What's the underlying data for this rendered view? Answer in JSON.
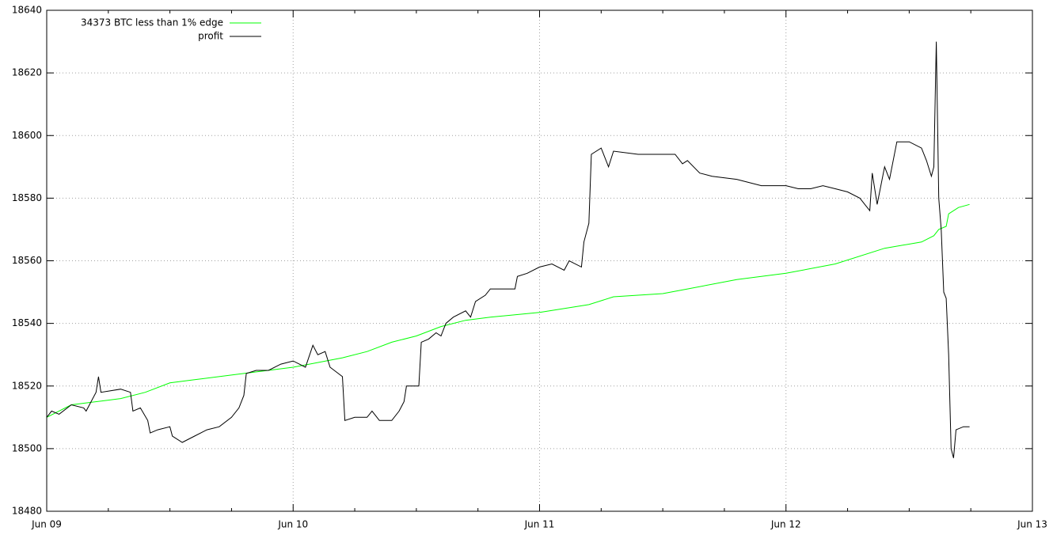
{
  "chart_data": {
    "type": "line",
    "x": [
      0,
      0.1,
      0.3,
      0.4,
      0.5,
      0.6,
      0.8,
      1.0,
      1.2,
      1.3,
      1.4,
      1.5,
      1.6,
      1.7,
      1.8,
      2.0,
      2.2,
      2.3,
      2.5,
      2.6,
      2.8,
      3.0,
      3.2,
      3.4,
      3.55,
      3.6,
      3.62,
      3.65,
      3.66,
      3.7,
      3.745
    ],
    "series": [
      {
        "name": "34373 BTC less than 1% edge",
        "color": "#00ff00",
        "values": [
          18510,
          18514,
          18516,
          18518,
          18521,
          18522,
          18524,
          18526,
          18529,
          18531,
          18534,
          18536,
          18539,
          18541,
          18542,
          18543.5,
          18546,
          18548.5,
          18549.5,
          18551,
          18554,
          18556,
          18559,
          18564,
          18566,
          18568,
          18570,
          18571,
          18575,
          18577,
          18578
        ]
      },
      {
        "name": "profit",
        "color": "#000000",
        "x": [
          0,
          0.02,
          0.05,
          0.1,
          0.15,
          0.16,
          0.2,
          0.21,
          0.22,
          0.3,
          0.34,
          0.35,
          0.38,
          0.41,
          0.42,
          0.45,
          0.5,
          0.51,
          0.55,
          0.6,
          0.65,
          0.7,
          0.75,
          0.78,
          0.8,
          0.81,
          0.85,
          0.9,
          0.95,
          1.0,
          1.05,
          1.08,
          1.1,
          1.13,
          1.15,
          1.2,
          1.21,
          1.25,
          1.3,
          1.32,
          1.34,
          1.35,
          1.4,
          1.43,
          1.45,
          1.46,
          1.51,
          1.52,
          1.55,
          1.58,
          1.6,
          1.62,
          1.65,
          1.7,
          1.72,
          1.74,
          1.78,
          1.8,
          1.9,
          1.91,
          1.95,
          2.0,
          2.05,
          2.1,
          2.12,
          2.17,
          2.18,
          2.2,
          2.21,
          2.25,
          2.28,
          2.3,
          2.4,
          2.55,
          2.58,
          2.6,
          2.65,
          2.7,
          2.8,
          2.9,
          3.0,
          3.05,
          3.1,
          3.15,
          3.2,
          3.25,
          3.3,
          3.32,
          3.34,
          3.35,
          3.37,
          3.4,
          3.42,
          3.45,
          3.5,
          3.55,
          3.57,
          3.59,
          3.6,
          3.61,
          3.62,
          3.63,
          3.64,
          3.65,
          3.66,
          3.67,
          3.68,
          3.69,
          3.72,
          3.745
        ],
        "values": [
          18510,
          18512,
          18511,
          18514,
          18513,
          18512,
          18518,
          18523,
          18518,
          18519,
          18518,
          18512,
          18513,
          18509,
          18505,
          18506,
          18507,
          18504,
          18502,
          18504,
          18506,
          18507,
          18510,
          18513,
          18517,
          18524,
          18525,
          18525,
          18527,
          18528,
          18526,
          18533,
          18530,
          18531,
          18526,
          18523,
          18509,
          18510,
          18510,
          18512,
          18510,
          18509,
          18509,
          18512,
          18515,
          18520,
          18520,
          18534,
          18535,
          18537,
          18536,
          18540,
          18542,
          18544,
          18542,
          18547,
          18549,
          18551,
          18551,
          18555,
          18556,
          18558,
          18559,
          18557,
          18560,
          18558,
          18566,
          18572,
          18594,
          18596,
          18590,
          18595,
          18594,
          18594,
          18591,
          18592,
          18588,
          18587,
          18586,
          18584,
          18584,
          18583,
          18583,
          18584,
          18583,
          18582,
          18580,
          18578,
          18576,
          18588,
          18578,
          18590,
          18586,
          18598,
          18598,
          18596,
          18592,
          18587,
          18590,
          18630,
          18580,
          18570,
          18550,
          18548,
          18530,
          18500,
          18497,
          18506,
          18507,
          18507
        ]
      }
    ],
    "xlim": [
      0,
      4
    ],
    "xticks": [
      {
        "value": 0,
        "label": "Jun 09"
      },
      {
        "value": 1,
        "label": "Jun 10"
      },
      {
        "value": 2,
        "label": "Jun 11"
      },
      {
        "value": 3,
        "label": "Jun 12"
      },
      {
        "value": 4,
        "label": "Jun 13"
      }
    ],
    "ylim": [
      18480,
      18640
    ],
    "yticks": [
      18480,
      18500,
      18520,
      18540,
      18560,
      18580,
      18600,
      18620,
      18640
    ],
    "grid": true,
    "legend": "top-left"
  }
}
